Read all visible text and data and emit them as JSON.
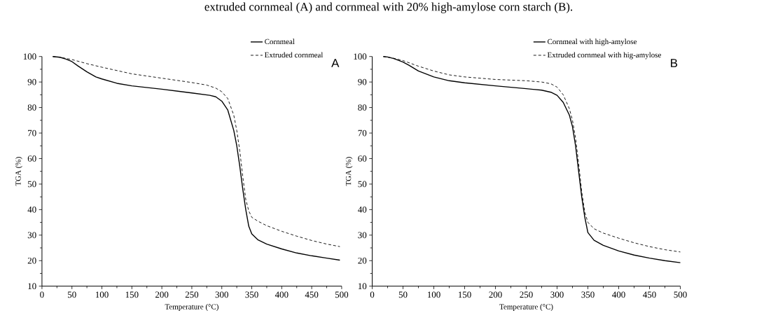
{
  "chart_data": [
    {
      "type": "line",
      "title": "A",
      "xlabel": "Temperature (°C)",
      "ylabel": "TGA (%)",
      "xlim": [
        0,
        500
      ],
      "ylim": [
        10,
        100
      ],
      "xticks": [
        0,
        50,
        100,
        150,
        200,
        250,
        300,
        350,
        400,
        450,
        500
      ],
      "yticks": [
        10,
        20,
        30,
        40,
        50,
        60,
        70,
        80,
        90,
        100
      ],
      "legend": "top right",
      "annotations": [
        "extruded cornmeal (A) and cornmeal with 20% high-amylose corn starch (B)."
      ],
      "series": [
        {
          "name": "Cornmeal",
          "color": "#000000",
          "line_style": "solid",
          "x": [
            18,
            30,
            40,
            50,
            60,
            75,
            90,
            100,
            125,
            150,
            200,
            250,
            280,
            290,
            300,
            310,
            320,
            325,
            330,
            335,
            340,
            345,
            350,
            360,
            375,
            400,
            425,
            450,
            475,
            497
          ],
          "values": [
            100,
            99.7,
            99,
            98,
            96.3,
            94,
            92,
            91.2,
            89.5,
            88.5,
            87.2,
            85.7,
            84.8,
            84.2,
            82.5,
            79,
            71,
            65,
            57,
            48,
            40,
            33.5,
            30.5,
            28.2,
            26.5,
            24.6,
            23,
            21.9,
            21,
            20.2
          ]
        },
        {
          "name": "Extruded cornmeal",
          "color": "#000000",
          "line_style": "dashed",
          "x": [
            18,
            30,
            50,
            75,
            100,
            150,
            200,
            250,
            275,
            290,
            300,
            310,
            320,
            325,
            330,
            335,
            340,
            345,
            350,
            360,
            375,
            400,
            425,
            450,
            475,
            497
          ],
          "values": [
            100,
            99.7,
            98.8,
            97.2,
            95.8,
            93.2,
            91.5,
            89.8,
            88.8,
            87.6,
            86.2,
            83.5,
            77,
            71,
            63,
            53,
            44,
            39.5,
            37,
            35.5,
            33.7,
            31.5,
            29.6,
            27.9,
            26.5,
            25.5
          ]
        }
      ]
    },
    {
      "type": "line",
      "title": "B",
      "xlabel": "Temperature (°C)",
      "ylabel": "TGA (%)",
      "xlim": [
        0,
        500
      ],
      "ylim": [
        10,
        100
      ],
      "xticks": [
        0,
        50,
        100,
        150,
        200,
        250,
        300,
        350,
        400,
        450,
        500
      ],
      "yticks": [
        10,
        20,
        30,
        40,
        50,
        60,
        70,
        80,
        90,
        100
      ],
      "legend": "top right",
      "series": [
        {
          "name": "Cornmeal with high-amylose",
          "color": "#000000",
          "line_style": "solid",
          "x": [
            18,
            25,
            35,
            50,
            60,
            75,
            100,
            125,
            150,
            200,
            250,
            275,
            290,
            300,
            310,
            320,
            325,
            330,
            335,
            340,
            345,
            350,
            360,
            375,
            400,
            425,
            450,
            475,
            500
          ],
          "values": [
            100,
            99.8,
            99.2,
            97.8,
            96.5,
            94.3,
            92,
            90.5,
            89.7,
            88.5,
            87.4,
            86.8,
            86,
            84.8,
            82,
            77,
            72.5,
            65,
            55,
            45,
            37,
            31,
            28,
            26,
            23.8,
            22.2,
            21,
            20,
            19.2
          ]
        },
        {
          "name": "Extruded cornmeal with hig-amylose",
          "color": "#000000",
          "line_style": "dashed",
          "x": [
            18,
            35,
            50,
            75,
            100,
            125,
            150,
            200,
            250,
            275,
            290,
            300,
            310,
            320,
            325,
            330,
            335,
            340,
            345,
            350,
            360,
            375,
            400,
            425,
            450,
            475,
            500
          ],
          "values": [
            100,
            99.3,
            98.4,
            96.2,
            94.3,
            92.8,
            92,
            91,
            90.5,
            90,
            89.3,
            88,
            85,
            79.5,
            75,
            68,
            58,
            47,
            39,
            35,
            32.5,
            30.8,
            28.8,
            27,
            25.5,
            24.3,
            23.4
          ]
        }
      ]
    }
  ]
}
